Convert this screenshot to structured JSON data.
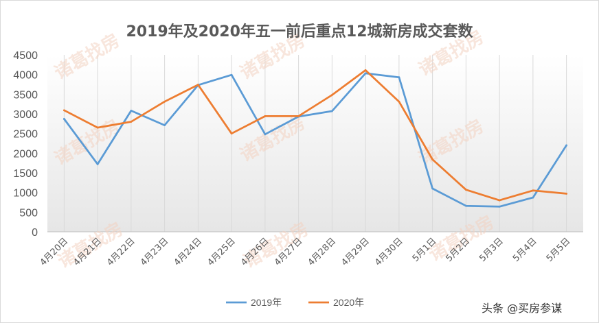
{
  "chart_data": {
    "type": "line",
    "title": "2019年及2020年五一前后重点12城新房成交套数",
    "xlabel": "",
    "ylabel": "",
    "ylim": [
      0,
      4500
    ],
    "yticks": [
      0,
      500,
      1000,
      1500,
      2000,
      2500,
      3000,
      3500,
      4000,
      4500
    ],
    "categories": [
      "4月20日",
      "4月21日",
      "4月22日",
      "4月23日",
      "4月24日",
      "4月25日",
      "4月26日",
      "4月27日",
      "4月28日",
      "4月29日",
      "4月30日",
      "5月1日",
      "5月2日",
      "5月3日",
      "5月4日",
      "5月5日"
    ],
    "series": [
      {
        "name": "2019年",
        "color": "#5b9bd5",
        "values": [
          2870,
          1720,
          3080,
          2710,
          3730,
          3990,
          2480,
          2930,
          3070,
          4030,
          3930,
          1100,
          660,
          640,
          870,
          2200
        ]
      },
      {
        "name": "2020年",
        "color": "#ed7d31",
        "values": [
          3090,
          2650,
          2800,
          3310,
          3740,
          2500,
          2940,
          2940,
          3480,
          4110,
          3310,
          1840,
          1070,
          800,
          1050,
          970
        ]
      }
    ],
    "grid": true,
    "legend": "bottom"
  },
  "watermark": "诸葛找房",
  "credit": "头条 @买房参谋"
}
